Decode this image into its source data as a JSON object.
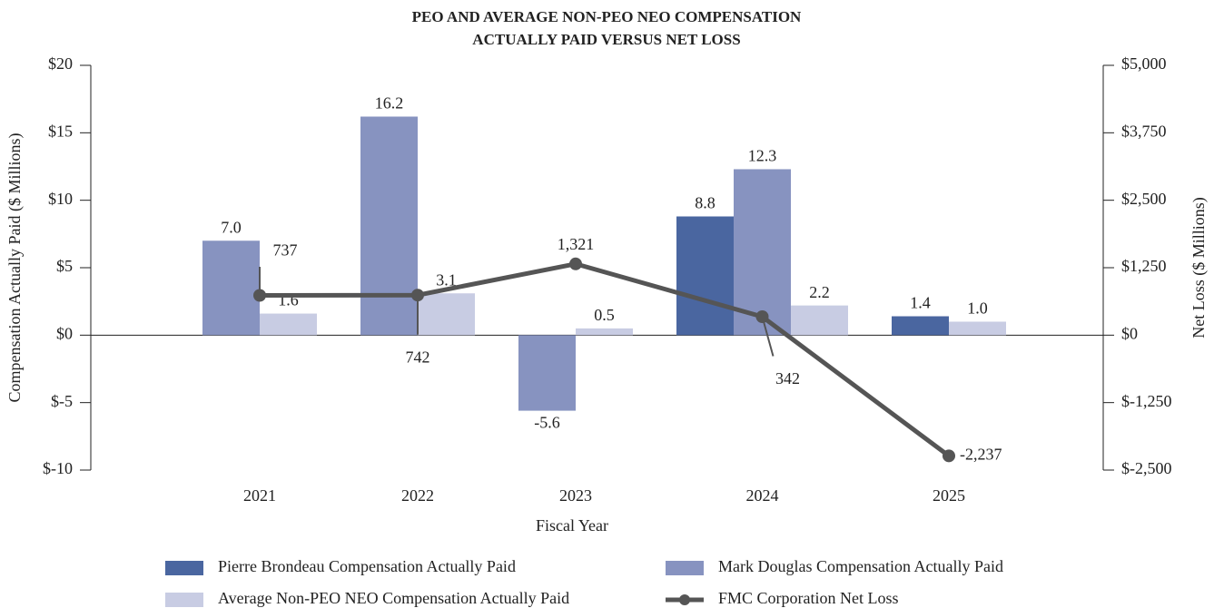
{
  "chart_data": {
    "type": "bar",
    "title": [
      "PEO AND AVERAGE NON-PEO NEO COMPENSATION",
      "ACTUALLY PAID VERSUS NET LOSS"
    ],
    "x_label": "Fiscal Year",
    "y_label": "Compensation Actually Paid ($ Millions)",
    "y2_label": "Net Loss ($ Millions)",
    "categories": [
      "2021",
      "2022",
      "2023",
      "2024",
      "2025"
    ],
    "series": [
      {
        "name": "Pierre Brondeau Compensation Actually Paid",
        "color": "#4a66a0",
        "type": "bar",
        "values": [
          null,
          null,
          null,
          8.8,
          1.4
        ],
        "value_labels": [
          null,
          null,
          null,
          "8.8",
          "1.4"
        ]
      },
      {
        "name": "Mark Douglas Compensation Actually Paid",
        "color": "#8793c0",
        "type": "bar",
        "values": [
          7.0,
          16.2,
          -5.6,
          12.3,
          null
        ],
        "value_labels": [
          "7.0",
          "16.2",
          "-5.6",
          "12.3",
          null
        ]
      },
      {
        "name": "Average Non-PEO NEO Compensation Actually Paid",
        "color": "#c8cce3",
        "type": "bar",
        "values": [
          1.6,
          3.1,
          0.5,
          2.2,
          1.0
        ],
        "value_labels": [
          "1.6",
          "3.1",
          "0.5",
          "2.2",
          "1.0"
        ]
      },
      {
        "name": "FMC Corporation Net Loss",
        "color": "#555555",
        "type": "line",
        "axis": "y2",
        "values": [
          737,
          742,
          1321,
          342,
          -2237
        ],
        "value_labels": [
          "737",
          "742",
          "1,321",
          "342",
          "-2,237"
        ]
      }
    ],
    "ylim": [
      -10,
      20
    ],
    "yticks": [
      {
        "value": -10,
        "label": "$-10"
      },
      {
        "value": -5,
        "label": "$-5"
      },
      {
        "value": 0,
        "label": "$0"
      },
      {
        "value": 5,
        "label": "$5"
      },
      {
        "value": 10,
        "label": "$10"
      },
      {
        "value": 15,
        "label": "$15"
      },
      {
        "value": 20,
        "label": "$20"
      }
    ],
    "y2lim": [
      -2500,
      5000
    ],
    "y2ticks": [
      {
        "value": -2500,
        "label": "$-2,500"
      },
      {
        "value": -1250,
        "label": "$-1,250"
      },
      {
        "value": 0,
        "label": "$0"
      },
      {
        "value": 1250,
        "label": "$1,250"
      },
      {
        "value": 2500,
        "label": "$2,500"
      },
      {
        "value": 3750,
        "label": "$3,750"
      },
      {
        "value": 5000,
        "label": "$5,000"
      }
    ]
  }
}
